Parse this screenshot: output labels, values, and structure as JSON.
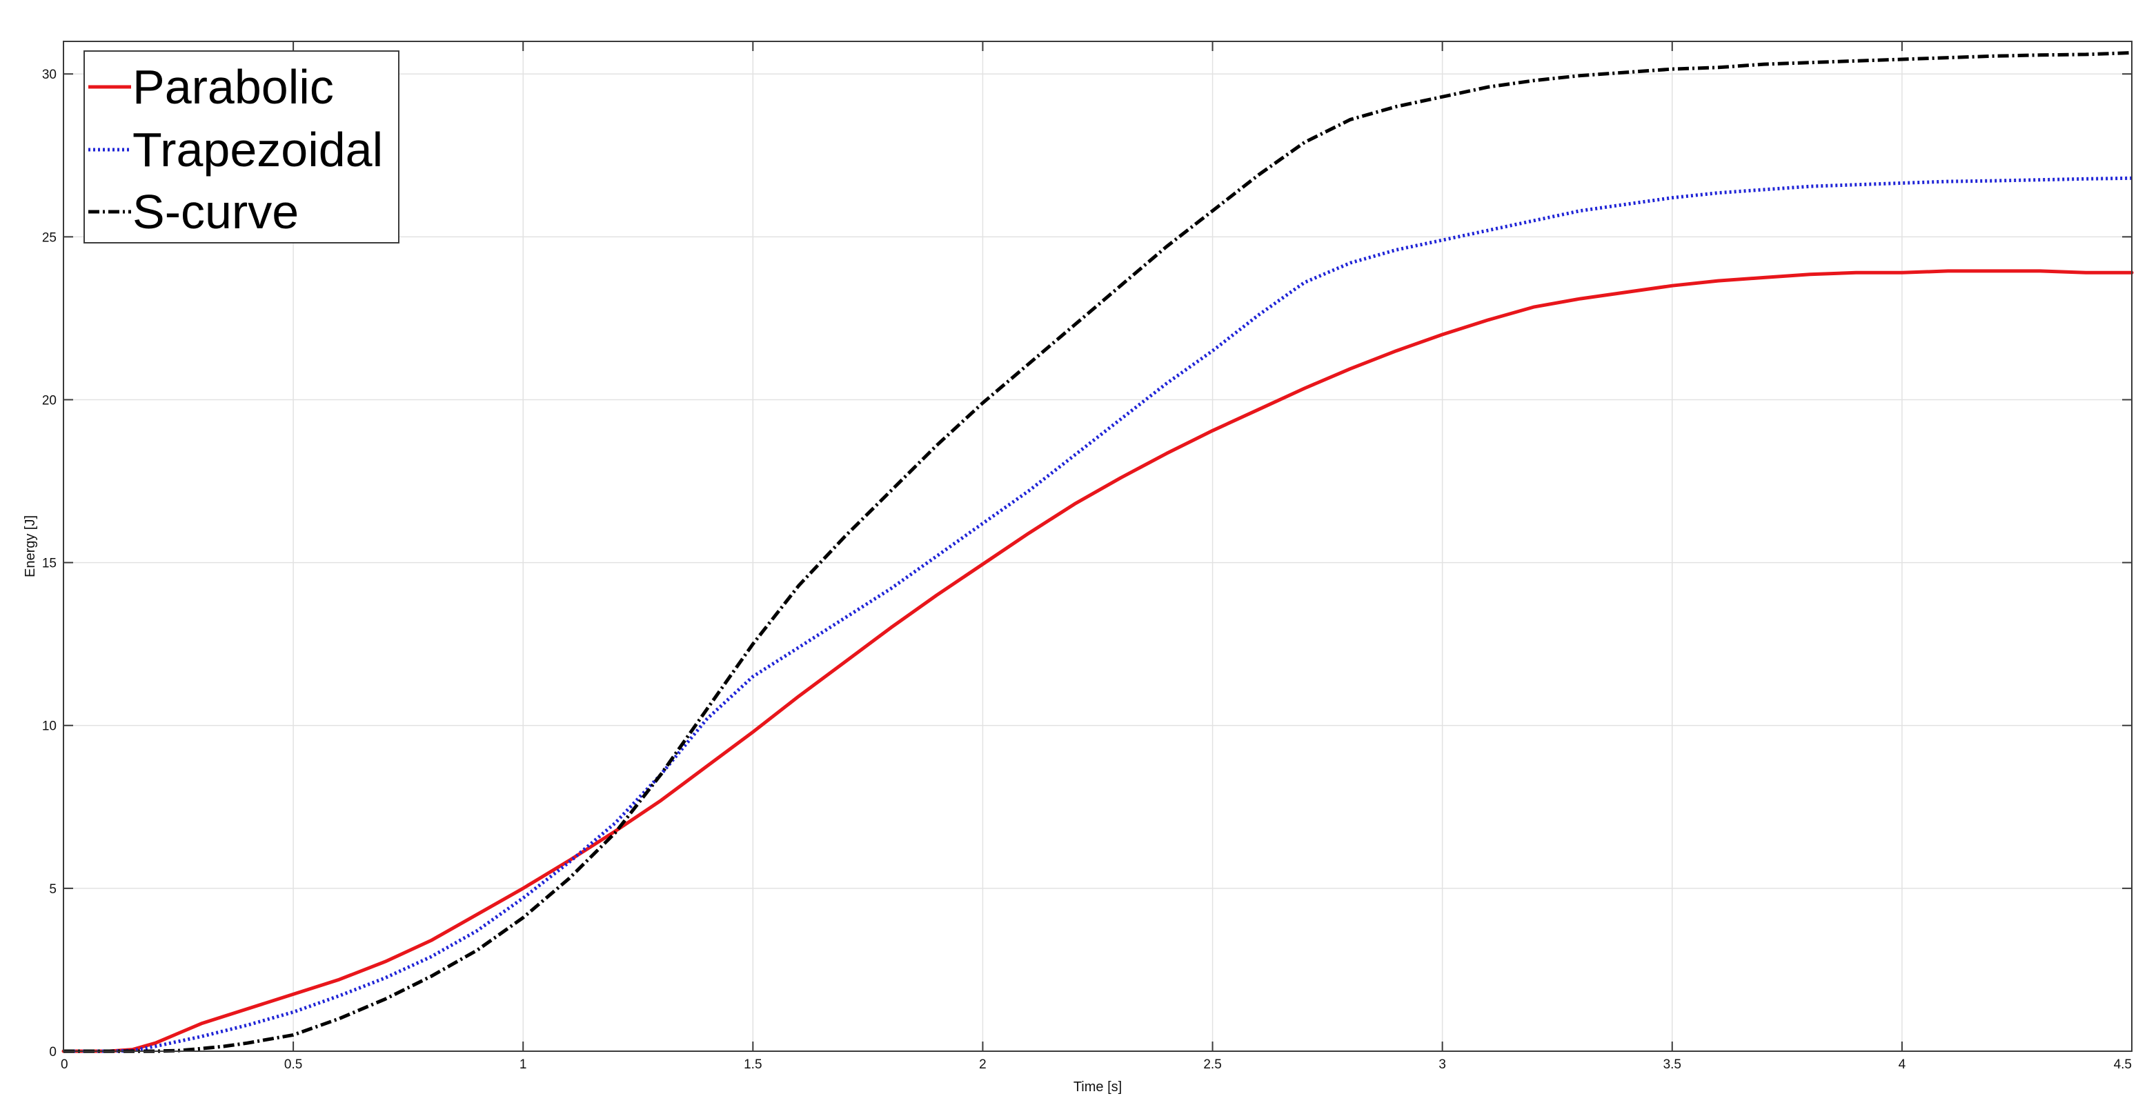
{
  "chart_data": {
    "type": "line",
    "title": "",
    "xlabel": "Time [s]",
    "ylabel": "Energy [J]",
    "xlim": [
      0,
      4.5
    ],
    "ylim": [
      0,
      31
    ],
    "grid": true,
    "legend_position": "top-left",
    "xticks": [
      0,
      0.5,
      1,
      1.5,
      2,
      2.5,
      3,
      3.5,
      4,
      4.5
    ],
    "xtick_labels": [
      "0",
      "0.5",
      "1",
      "1.5",
      "2",
      "2.5",
      "3",
      "3.5",
      "4",
      "4.5"
    ],
    "yticks": [
      0,
      5,
      10,
      15,
      20,
      25,
      30
    ],
    "ytick_labels": [
      "0",
      "5",
      "10",
      "15",
      "20",
      "25",
      "30"
    ],
    "series": [
      {
        "name": "Parabolic",
        "color": "#e8161b",
        "style": "solid",
        "x": [
          0,
          0.1,
          0.15,
          0.2,
          0.25,
          0.3,
          0.4,
          0.5,
          0.6,
          0.7,
          0.8,
          0.9,
          1.0,
          1.1,
          1.2,
          1.3,
          1.4,
          1.5,
          1.6,
          1.7,
          1.8,
          1.9,
          2.0,
          2.1,
          2.2,
          2.3,
          2.4,
          2.5,
          2.6,
          2.7,
          2.8,
          2.9,
          3.0,
          3.1,
          3.2,
          3.3,
          3.4,
          3.5,
          3.6,
          3.7,
          3.8,
          3.9,
          4.0,
          4.1,
          4.2,
          4.3,
          4.4,
          4.5
        ],
        "y": [
          0,
          0,
          0.05,
          0.25,
          0.55,
          0.85,
          1.3,
          1.75,
          2.2,
          2.75,
          3.4,
          4.2,
          5.0,
          5.85,
          6.75,
          7.7,
          8.75,
          9.8,
          10.9,
          11.95,
          13.0,
          14.0,
          14.95,
          15.9,
          16.8,
          17.6,
          18.35,
          19.05,
          19.7,
          20.35,
          20.95,
          21.5,
          22.0,
          22.45,
          22.85,
          23.1,
          23.3,
          23.5,
          23.65,
          23.75,
          23.85,
          23.9,
          23.9,
          23.95,
          23.95,
          23.95,
          23.9,
          23.9
        ]
      },
      {
        "name": "Trapezoidal",
        "color": "#1f24d6",
        "style": "dotted",
        "x": [
          0,
          0.1,
          0.15,
          0.2,
          0.3,
          0.4,
          0.5,
          0.6,
          0.7,
          0.8,
          0.9,
          1.0,
          1.1,
          1.2,
          1.3,
          1.4,
          1.5,
          1.6,
          1.7,
          1.8,
          1.9,
          2.0,
          2.1,
          2.2,
          2.3,
          2.4,
          2.5,
          2.6,
          2.7,
          2.8,
          2.9,
          3.0,
          3.1,
          3.2,
          3.3,
          3.4,
          3.5,
          3.6,
          3.7,
          3.8,
          3.9,
          4.0,
          4.1,
          4.2,
          4.3,
          4.4,
          4.5
        ],
        "y": [
          0,
          0,
          0.02,
          0.15,
          0.45,
          0.8,
          1.2,
          1.7,
          2.25,
          2.9,
          3.7,
          4.7,
          5.8,
          7.0,
          8.5,
          10.2,
          11.5,
          12.4,
          13.3,
          14.2,
          15.2,
          16.2,
          17.2,
          18.3,
          19.4,
          20.5,
          21.5,
          22.6,
          23.6,
          24.2,
          24.6,
          24.9,
          25.2,
          25.5,
          25.8,
          26.0,
          26.2,
          26.35,
          26.45,
          26.55,
          26.6,
          26.65,
          26.7,
          26.72,
          26.75,
          26.78,
          26.8
        ]
      },
      {
        "name": "S-curve",
        "color": "#000000",
        "style": "dashdot",
        "x": [
          0,
          0.2,
          0.25,
          0.3,
          0.35,
          0.4,
          0.5,
          0.6,
          0.7,
          0.8,
          0.9,
          1.0,
          1.1,
          1.2,
          1.3,
          1.4,
          1.5,
          1.6,
          1.7,
          1.8,
          1.9,
          2.0,
          2.1,
          2.2,
          2.3,
          2.4,
          2.5,
          2.6,
          2.7,
          2.8,
          2.9,
          3.0,
          3.1,
          3.2,
          3.3,
          3.4,
          3.5,
          3.6,
          3.7,
          3.8,
          3.9,
          4.0,
          4.1,
          4.2,
          4.3,
          4.4,
          4.5
        ],
        "y": [
          0,
          0,
          0.02,
          0.08,
          0.15,
          0.25,
          0.5,
          1.0,
          1.6,
          2.3,
          3.1,
          4.1,
          5.3,
          6.7,
          8.5,
          10.5,
          12.5,
          14.3,
          15.8,
          17.2,
          18.6,
          19.9,
          21.1,
          22.3,
          23.5,
          24.7,
          25.8,
          26.9,
          27.9,
          28.6,
          29.0,
          29.3,
          29.6,
          29.8,
          29.95,
          30.05,
          30.15,
          30.2,
          30.3,
          30.35,
          30.4,
          30.45,
          30.5,
          30.55,
          30.58,
          30.6,
          30.65
        ]
      }
    ]
  }
}
